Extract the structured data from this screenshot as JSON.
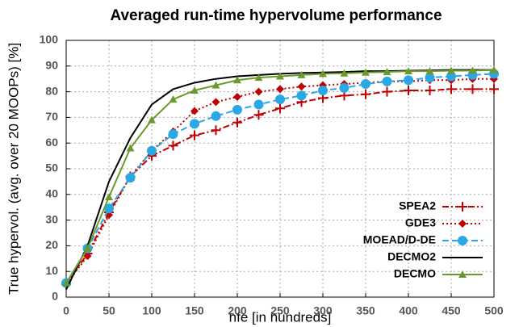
{
  "chart_data": {
    "type": "line",
    "title": "Averaged run-time hypervolume performance",
    "x_label": "nfe [in hundreds]",
    "y_label": "True hypervol. (avg. over 20 MOOPs) [%]",
    "x": [
      0,
      25,
      50,
      75,
      100,
      125,
      150,
      175,
      200,
      225,
      250,
      275,
      300,
      325,
      350,
      375,
      400,
      425,
      450,
      475,
      500
    ],
    "series": [
      {
        "name": "SPEA2",
        "color": "#c00000",
        "dash": "8 3 2 3",
        "marker": "plus",
        "values": [
          5,
          17,
          33,
          47,
          55,
          59,
          63,
          65,
          68,
          71,
          73.5,
          76,
          77.5,
          78.5,
          79,
          80,
          80.5,
          80.5,
          81,
          81,
          81
        ]
      },
      {
        "name": "GDE3",
        "color": "#c00000",
        "dash": "2 3",
        "marker": "diamond",
        "values": [
          5,
          16,
          32,
          47,
          57,
          64.5,
          72.5,
          76,
          78,
          80,
          81,
          82,
          82.5,
          83,
          83.5,
          84,
          84,
          84.5,
          84.5,
          85,
          85
        ]
      },
      {
        "name": "MOEAD/D-DE",
        "color": "#2aa8e6",
        "dash": "8 4",
        "marker": "circle",
        "values": [
          5.5,
          19,
          34.5,
          46.5,
          57,
          63.5,
          67.5,
          70.5,
          73,
          75,
          77,
          78.5,
          80.5,
          81.5,
          83,
          84,
          84.5,
          85.5,
          86,
          86.5,
          87
        ]
      },
      {
        "name": "DECMO2",
        "color": "#000000",
        "dash": "none",
        "marker": "none",
        "values": [
          3,
          20,
          45,
          62,
          75,
          81,
          83.5,
          85,
          86,
          86.5,
          87,
          87.3,
          87.5,
          87.7,
          88,
          88,
          88.2,
          88.3,
          88.5,
          88.5,
          88.5
        ]
      },
      {
        "name": "DECMO",
        "color": "#6b9a2c",
        "dash": "none",
        "marker": "triangle",
        "values": [
          5.5,
          19,
          39,
          58,
          69,
          77,
          80.5,
          82.5,
          84.5,
          85.5,
          86,
          86.5,
          87,
          87.2,
          87.5,
          87.7,
          88,
          88,
          88.2,
          88.2,
          88.5
        ]
      }
    ],
    "xlim": [
      0,
      500
    ],
    "xticks": [
      0,
      50,
      100,
      150,
      200,
      250,
      300,
      350,
      400,
      450,
      500
    ],
    "ylim": [
      0,
      100
    ],
    "yticks": [
      0,
      10,
      20,
      30,
      40,
      50,
      60,
      70,
      80,
      90,
      100
    ],
    "grid": true,
    "legend": "lower right"
  }
}
